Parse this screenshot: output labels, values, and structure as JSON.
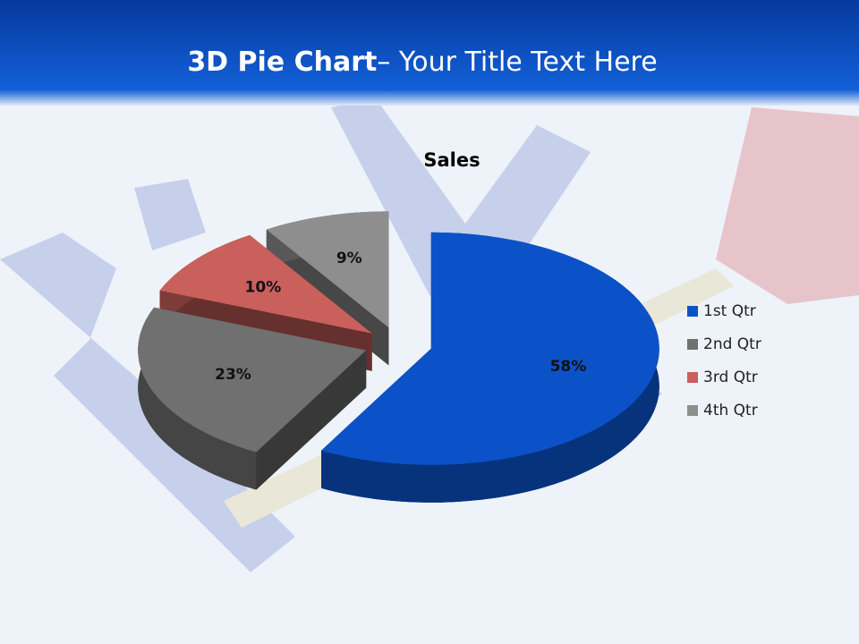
{
  "slide_title": {
    "bold": "3D Pie Chart",
    "rest": "– Your Title Text Here"
  },
  "chart_data": {
    "type": "pie3d",
    "title": "Sales",
    "categories": [
      "1st Qtr",
      "2nd Qtr",
      "3rd Qtr",
      "4th Qtr"
    ],
    "values": [
      58,
      23,
      10,
      9
    ],
    "value_labels": [
      "58%",
      "23%",
      "10%",
      "9%"
    ],
    "colors": [
      "#0b52c8",
      "#707070",
      "#c9605c",
      "#8e8e8e"
    ],
    "legend": "right"
  }
}
